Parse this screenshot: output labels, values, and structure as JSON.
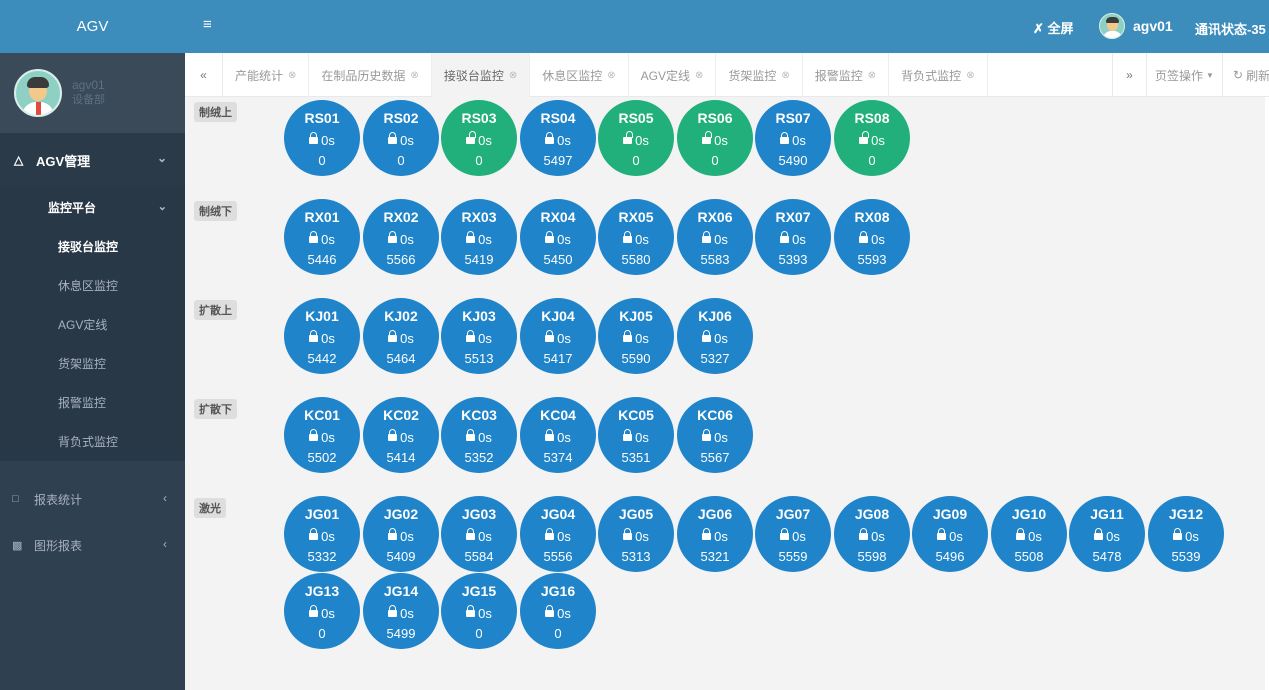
{
  "app": {
    "title": "AGV"
  },
  "user": {
    "name": "agv01",
    "department": "设备部"
  },
  "header": {
    "menu_icon": "≡",
    "fullscreen_label": "全屏",
    "username": "agv01",
    "comm_status": "通讯状态-35"
  },
  "sidebar": {
    "group1": {
      "label": "AGV管理",
      "icon": "car-icon"
    },
    "subgroup": {
      "label": "监控平台"
    },
    "items": [
      {
        "label": "接驳台监控",
        "active": true
      },
      {
        "label": "休息区监控",
        "active": false
      },
      {
        "label": "AGV定线",
        "active": false
      },
      {
        "label": "货架监控",
        "active": false
      },
      {
        "label": "报警监控",
        "active": false
      },
      {
        "label": "背负式监控",
        "active": false
      }
    ],
    "group2": {
      "label": "报表统计",
      "icon": "file-icon"
    },
    "group3": {
      "label": "图形报表",
      "icon": "bar-chart-icon"
    }
  },
  "tabbar": {
    "tabs": [
      {
        "label": "产能统计",
        "active": false
      },
      {
        "label": "在制品历史数据",
        "active": false
      },
      {
        "label": "接驳台监控",
        "active": true
      },
      {
        "label": "休息区监控",
        "active": false
      },
      {
        "label": "AGV定线",
        "active": false
      },
      {
        "label": "货架监控",
        "active": false
      },
      {
        "label": "报警监控",
        "active": false
      },
      {
        "label": "背负式监控",
        "active": false
      }
    ],
    "ops_label": "页签操作",
    "refresh_label": "刷新"
  },
  "sections": [
    {
      "label": "制绒上",
      "nodes": [
        {
          "id": "RS01",
          "time": "0s",
          "value": "0",
          "status": "locked"
        },
        {
          "id": "RS02",
          "time": "0s",
          "value": "0",
          "status": "locked"
        },
        {
          "id": "RS03",
          "time": "0s",
          "value": "0",
          "status": "unlocked"
        },
        {
          "id": "RS04",
          "time": "0s",
          "value": "5497",
          "status": "locked"
        },
        {
          "id": "RS05",
          "time": "0s",
          "value": "0",
          "status": "unlocked"
        },
        {
          "id": "RS06",
          "time": "0s",
          "value": "0",
          "status": "unlocked"
        },
        {
          "id": "RS07",
          "time": "0s",
          "value": "5490",
          "status": "locked"
        },
        {
          "id": "RS08",
          "time": "0s",
          "value": "0",
          "status": "unlocked"
        }
      ]
    },
    {
      "label": "制绒下",
      "nodes": [
        {
          "id": "RX01",
          "time": "0s",
          "value": "5446",
          "status": "locked"
        },
        {
          "id": "RX02",
          "time": "0s",
          "value": "5566",
          "status": "locked"
        },
        {
          "id": "RX03",
          "time": "0s",
          "value": "5419",
          "status": "locked"
        },
        {
          "id": "RX04",
          "time": "0s",
          "value": "5450",
          "status": "locked"
        },
        {
          "id": "RX05",
          "time": "0s",
          "value": "5580",
          "status": "locked"
        },
        {
          "id": "RX06",
          "time": "0s",
          "value": "5583",
          "status": "locked"
        },
        {
          "id": "RX07",
          "time": "0s",
          "value": "5393",
          "status": "locked"
        },
        {
          "id": "RX08",
          "time": "0s",
          "value": "5593",
          "status": "locked"
        }
      ]
    },
    {
      "label": "扩散上",
      "nodes": [
        {
          "id": "KJ01",
          "time": "0s",
          "value": "5442",
          "status": "locked"
        },
        {
          "id": "KJ02",
          "time": "0s",
          "value": "5464",
          "status": "locked"
        },
        {
          "id": "KJ03",
          "time": "0s",
          "value": "5513",
          "status": "locked"
        },
        {
          "id": "KJ04",
          "time": "0s",
          "value": "5417",
          "status": "locked"
        },
        {
          "id": "KJ05",
          "time": "0s",
          "value": "5590",
          "status": "locked"
        },
        {
          "id": "KJ06",
          "time": "0s",
          "value": "5327",
          "status": "locked"
        }
      ]
    },
    {
      "label": "扩散下",
      "nodes": [
        {
          "id": "KC01",
          "time": "0s",
          "value": "5502",
          "status": "locked"
        },
        {
          "id": "KC02",
          "time": "0s",
          "value": "5414",
          "status": "locked"
        },
        {
          "id": "KC03",
          "time": "0s",
          "value": "5352",
          "status": "locked"
        },
        {
          "id": "KC04",
          "time": "0s",
          "value": "5374",
          "status": "locked"
        },
        {
          "id": "KC05",
          "time": "0s",
          "value": "5351",
          "status": "locked"
        },
        {
          "id": "KC06",
          "time": "0s",
          "value": "5567",
          "status": "locked"
        }
      ]
    },
    {
      "label": "激光",
      "nodes": [
        {
          "id": "JG01",
          "time": "0s",
          "value": "5332",
          "status": "locked"
        },
        {
          "id": "JG02",
          "time": "0s",
          "value": "5409",
          "status": "locked"
        },
        {
          "id": "JG03",
          "time": "0s",
          "value": "5584",
          "status": "locked"
        },
        {
          "id": "JG04",
          "time": "0s",
          "value": "5556",
          "status": "locked"
        },
        {
          "id": "JG05",
          "time": "0s",
          "value": "5313",
          "status": "locked"
        },
        {
          "id": "JG06",
          "time": "0s",
          "value": "5321",
          "status": "locked"
        },
        {
          "id": "JG07",
          "time": "0s",
          "value": "5559",
          "status": "locked"
        },
        {
          "id": "JG08",
          "time": "0s",
          "value": "5598",
          "status": "locked"
        },
        {
          "id": "JG09",
          "time": "0s",
          "value": "5496",
          "status": "locked"
        },
        {
          "id": "JG10",
          "time": "0s",
          "value": "5508",
          "status": "locked"
        },
        {
          "id": "JG11",
          "time": "0s",
          "value": "5478",
          "status": "locked"
        },
        {
          "id": "JG12",
          "time": "0s",
          "value": "5539",
          "status": "locked"
        },
        {
          "id": "JG13",
          "time": "0s",
          "value": "0",
          "status": "locked"
        },
        {
          "id": "JG14",
          "time": "0s",
          "value": "5499",
          "status": "locked"
        },
        {
          "id": "JG15",
          "time": "0s",
          "value": "0",
          "status": "locked"
        },
        {
          "id": "JG16",
          "time": "0s",
          "value": "0",
          "status": "locked"
        }
      ]
    }
  ],
  "colors": {
    "header": "#3c8dbc",
    "sidebar": "#2f4050",
    "locked": "#1f84c9",
    "unlocked": "#21b07b"
  }
}
